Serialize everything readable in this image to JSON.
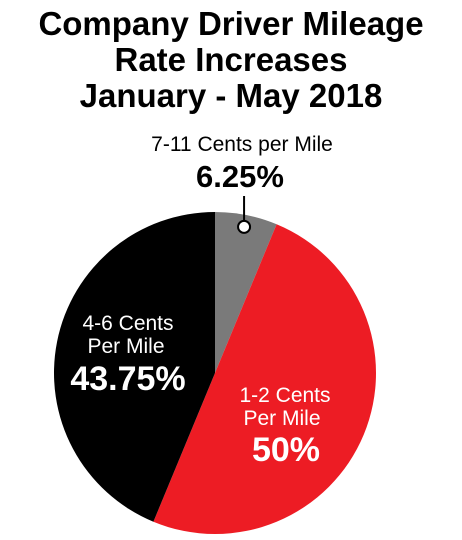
{
  "chart_data": {
    "type": "pie",
    "title_lines": [
      "Company Driver Mileage",
      "Rate Increases",
      "January - May 2018"
    ],
    "slices": [
      {
        "label_lines": [
          "7-11 Cents per Mile"
        ],
        "value": 6.25,
        "value_label": "6.25%",
        "color": "#7a7a7a"
      },
      {
        "label_lines": [
          "1-2 Cents",
          "Per Mile"
        ],
        "value": 50,
        "value_label": "50%",
        "color": "#ed1c24"
      },
      {
        "label_lines": [
          "4-6 Cents",
          "Per Mile"
        ],
        "value": 43.75,
        "value_label": "43.75%",
        "color": "#000000"
      }
    ]
  }
}
